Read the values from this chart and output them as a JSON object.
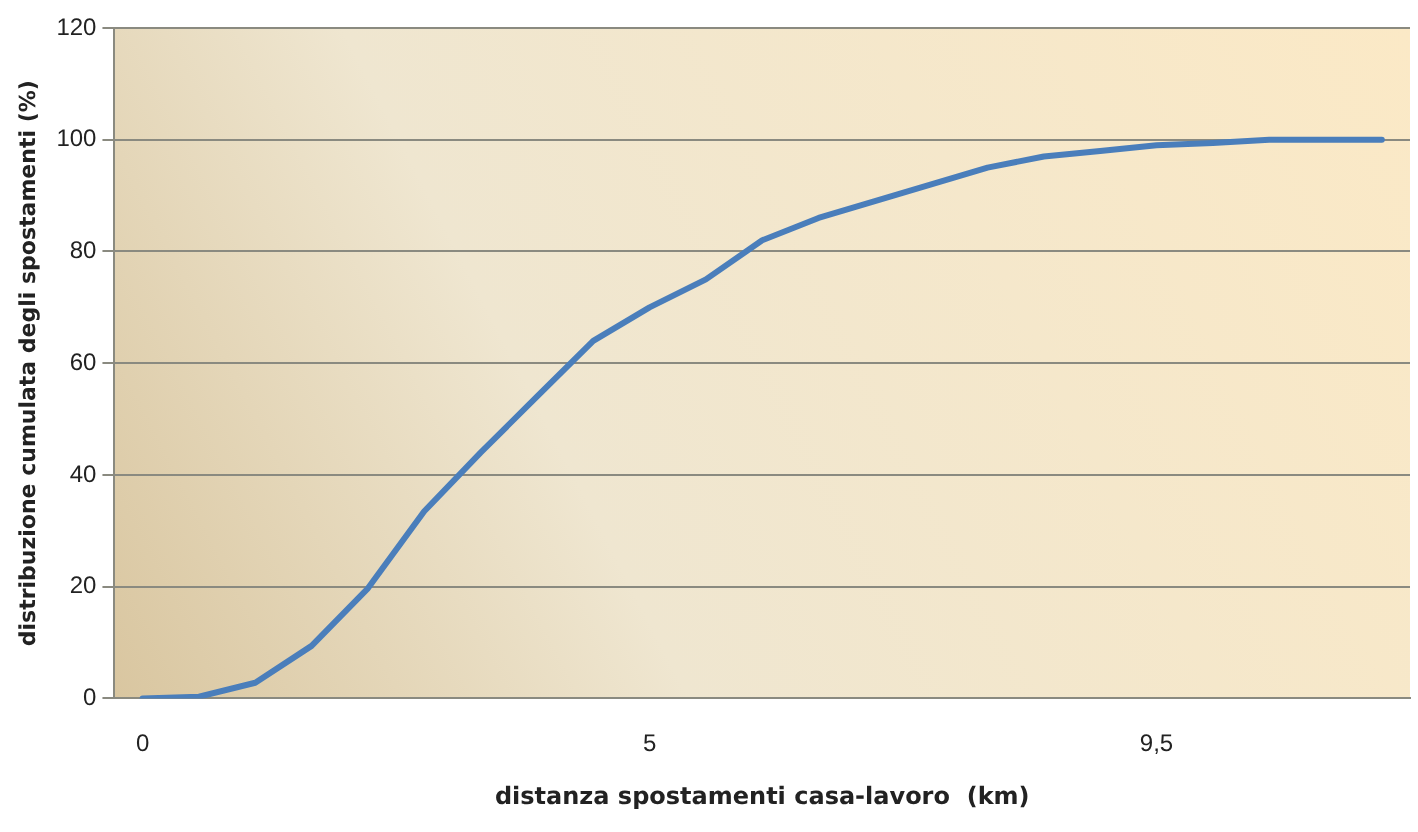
{
  "chart_data": {
    "type": "line",
    "xlabel": "distanza spostamenti casa-lavoro  (km)",
    "ylabel": "distribuzione cumulata degli spostamenti (%)",
    "categories": [
      "0",
      null,
      null,
      null,
      null,
      null,
      null,
      null,
      null,
      "5",
      null,
      null,
      null,
      null,
      null,
      null,
      null,
      null,
      "9,5",
      null,
      null,
      null,
      null
    ],
    "series": [
      {
        "color": "#4a7ebb",
        "values": [
          0,
          0.3,
          2.8,
          9.4,
          19.7,
          33.5,
          44,
          54,
          64,
          70,
          75,
          82,
          86,
          89,
          92,
          95,
          97,
          98,
          99,
          99.4,
          100,
          100,
          100
        ]
      }
    ],
    "ylim": [
      0,
      120
    ],
    "yticks": [
      0,
      20,
      40,
      60,
      80,
      100,
      120
    ],
    "grid": "y",
    "legend": false,
    "marker": "none",
    "line_style": "solid"
  }
}
